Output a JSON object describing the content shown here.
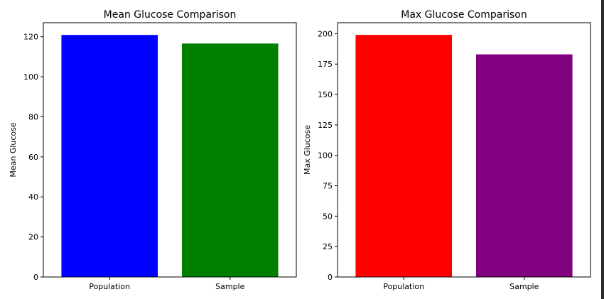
{
  "chart_data": [
    {
      "type": "bar",
      "title": "Mean Glucose Comparison",
      "xlabel": "",
      "ylabel": "Mean Glucose",
      "categories": [
        "Population",
        "Sample"
      ],
      "values": [
        120.9,
        116.6
      ],
      "colors": [
        "#0000ff",
        "#008000"
      ],
      "ylim": [
        0,
        127
      ],
      "yticks": [
        0,
        20,
        40,
        60,
        80,
        100,
        120
      ],
      "grid": false
    },
    {
      "type": "bar",
      "title": "Max Glucose Comparison",
      "xlabel": "",
      "ylabel": "Max Glucose",
      "categories": [
        "Population",
        "Sample"
      ],
      "values": [
        199,
        183
      ],
      "colors": [
        "#ff0000",
        "#800080"
      ],
      "ylim": [
        0,
        209
      ],
      "yticks": [
        0,
        25,
        50,
        75,
        100,
        125,
        150,
        175,
        200
      ],
      "grid": false
    }
  ]
}
